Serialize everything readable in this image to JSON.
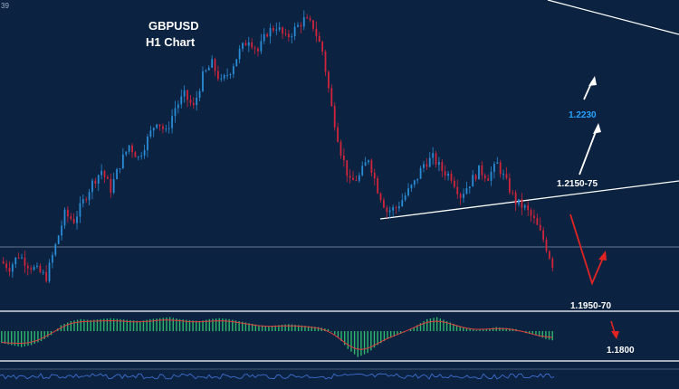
{
  "title_lines": [
    "GBPUSD",
    "H1 Chart"
  ],
  "corner_label": "39",
  "colors": {
    "background": "#0b2240",
    "bull": "#2a8cd6",
    "bear": "#d0253a",
    "macd_hist": "#2fb86c",
    "signal": "#e04040",
    "target_up": "#2aa2ff",
    "text": "#ffffff",
    "arrow_down": "#e02424"
  },
  "chart_data": {
    "type": "candlestick",
    "symbol": "GBPUSD",
    "timeframe": "H1",
    "price_levels": [
      {
        "label": "1.2230",
        "price": 1.223,
        "color": "#2aa2ff"
      },
      {
        "label": "1.2150-75",
        "price": 1.2162,
        "color": "#ffffff"
      },
      {
        "label": "1.1950-70",
        "price": 1.196,
        "color": "#ffffff"
      },
      {
        "label": "1.1800",
        "price": 1.18,
        "color": "#ffffff"
      }
    ],
    "horizontal_support": 1.2055,
    "close_trend": [
      1.2085,
      1.2075,
      1.2095,
      1.208,
      1.207,
      1.206,
      1.211,
      1.216,
      1.215,
      1.218,
      1.221,
      1.223,
      1.22,
      1.224,
      1.227,
      1.225,
      1.228,
      1.231,
      1.229,
      1.233,
      1.235,
      1.233,
      1.238,
      1.24,
      1.237,
      1.239,
      1.242,
      1.244,
      1.242,
      1.245,
      1.246,
      1.244,
      1.2455,
      1.247,
      1.246,
      1.242,
      1.233,
      1.226,
      1.221,
      1.222,
      1.225,
      1.22,
      1.2165,
      1.217,
      1.219,
      1.221,
      1.224,
      1.225,
      1.223,
      1.222,
      1.219,
      1.221,
      1.223,
      1.222,
      1.224,
      1.221,
      1.218,
      1.217,
      1.215,
      1.212,
      1.208
    ],
    "macd_histogram": [
      -0.6,
      -0.7,
      -0.8,
      -0.7,
      -0.5,
      -0.2,
      0.3,
      0.5,
      0.6,
      0.55,
      0.6,
      0.65,
      0.6,
      0.55,
      0.5,
      0.6,
      0.65,
      0.7,
      0.6,
      0.55,
      0.5,
      0.6,
      0.65,
      0.6,
      0.5,
      0.4,
      0.3,
      0.25,
      0.3,
      0.35,
      0.3,
      0.25,
      0.2,
      0.1,
      -0.3,
      -0.9,
      -1.3,
      -1.1,
      -0.7,
      -0.4,
      -0.2,
      0.0,
      0.3,
      0.6,
      0.7,
      0.5,
      0.3,
      0.15,
      0.05,
      0.1,
      0.2,
      0.15,
      0.1,
      -0.1,
      -0.2,
      -0.4,
      -0.5
    ],
    "grid": false
  }
}
